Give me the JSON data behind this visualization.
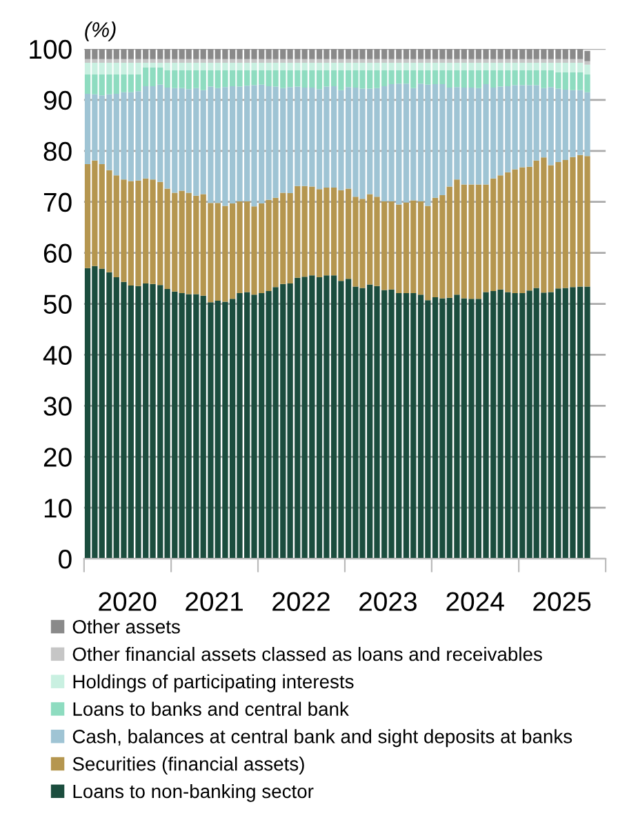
{
  "chart_data": {
    "type": "bar",
    "stacked": true,
    "ylabel": "(%)",
    "x": [
      "2020-01-16",
      "2020-02-15",
      "2020-03-16",
      "2020-04-16",
      "2020-05-16",
      "2020-06-16",
      "2020-07-16",
      "2020-08-16",
      "2020-09-16",
      "2020-10-16",
      "2020-11-16",
      "2020-12-16",
      "2021-01-16",
      "2021-02-15",
      "2021-03-16",
      "2021-04-16",
      "2021-05-16",
      "2021-06-16",
      "2021-07-16",
      "2021-08-16",
      "2021-09-16",
      "2021-10-16",
      "2021-11-16",
      "2021-12-16",
      "2022-01-16",
      "2022-02-15",
      "2022-03-16",
      "2022-04-16",
      "2022-05-16",
      "2022-06-16",
      "2022-07-16",
      "2022-08-16",
      "2022-09-16",
      "2022-10-16",
      "2022-11-16",
      "2022-12-16",
      "2023-01-16",
      "2023-02-15",
      "2023-03-16",
      "2023-04-16",
      "2023-05-16",
      "2023-06-16",
      "2023-07-16",
      "2023-08-16",
      "2023-09-16",
      "2023-10-16",
      "2023-11-16",
      "2023-12-16",
      "2024-01-16",
      "2024-02-15",
      "2024-03-16",
      "2024-04-16",
      "2024-05-16",
      "2024-06-16",
      "2024-07-16",
      "2024-08-16",
      "2024-09-16",
      "2024-10-16",
      "2024-11-16",
      "2024-12-16",
      "2025-01-16",
      "2025-02-15",
      "2025-03-16",
      "2025-04-16",
      "2025-05-16",
      "2025-06-16",
      "2025-07-16",
      "2025-08-16",
      "2025-09-16",
      "2025-10-16"
    ],
    "xlim": [
      "2020-01",
      "2026-01"
    ],
    "xticks": [
      {
        "value": "2020-01",
        "label": null
      },
      {
        "value": "2020-07",
        "label": "2020"
      },
      {
        "value": "2021-01",
        "label": null
      },
      {
        "value": "2021-07",
        "label": "2021"
      },
      {
        "value": "2022-01",
        "label": null
      },
      {
        "value": "2022-07",
        "label": "2022"
      },
      {
        "value": "2023-01",
        "label": null
      },
      {
        "value": "2023-07",
        "label": "2023"
      },
      {
        "value": "2024-01",
        "label": null
      },
      {
        "value": "2024-07",
        "label": "2024"
      },
      {
        "value": "2025-01",
        "label": null
      },
      {
        "value": "2025-07",
        "label": "2025"
      },
      {
        "value": "2026-01",
        "label": null
      }
    ],
    "ylim": [
      0,
      100
    ],
    "yticks": [
      0,
      10,
      20,
      30,
      40,
      50,
      60,
      70,
      80,
      90,
      100
    ],
    "grid": "y",
    "legend": "bottom",
    "series": [
      {
        "name": "Loans to non-banking sector",
        "color": "#1b4d3e",
        "values": [
          57.0,
          57.4,
          56.9,
          56.2,
          55.2,
          54.3,
          53.6,
          53.5,
          54.0,
          53.9,
          53.7,
          52.9,
          52.4,
          52.1,
          51.9,
          51.9,
          51.6,
          50.3,
          50.6,
          50.4,
          51.0,
          52.1,
          52.3,
          51.8,
          52.1,
          52.5,
          53.3,
          53.9,
          54.0,
          55.1,
          55.3,
          55.6,
          55.2,
          55.6,
          55.6,
          54.5,
          54.9,
          53.4,
          53.1,
          53.8,
          53.5,
          52.7,
          52.8,
          52.1,
          52.1,
          52.1,
          51.8,
          50.7,
          51.3,
          51.1,
          51.2,
          51.8,
          51.1,
          51.0,
          51.0,
          52.3,
          52.5,
          52.8,
          52.3,
          52.1,
          52.1,
          52.6,
          53.1,
          52.2,
          52.3,
          53.0,
          53.1,
          53.3,
          53.4,
          53.4
        ]
      },
      {
        "name": "Securities (financial assets)",
        "color": "#b5964f",
        "values": [
          20.4,
          20.7,
          20.5,
          20.0,
          20.0,
          20.1,
          20.5,
          20.7,
          20.6,
          20.5,
          20.2,
          19.7,
          19.4,
          20.1,
          19.9,
          19.3,
          19.9,
          19.5,
          19.2,
          18.8,
          18.7,
          18.0,
          17.8,
          17.3,
          17.6,
          17.9,
          17.5,
          17.9,
          17.7,
          18.0,
          17.8,
          17.4,
          17.3,
          17.2,
          17.2,
          17.8,
          17.7,
          17.6,
          17.5,
          17.7,
          17.5,
          17.4,
          17.3,
          17.4,
          17.8,
          18.2,
          18.3,
          18.5,
          19.5,
          20.2,
          21.8,
          22.6,
          22.3,
          22.4,
          22.4,
          21.1,
          22.1,
          22.4,
          23.5,
          24.3,
          24.7,
          24.3,
          25.0,
          26.5,
          24.9,
          24.8,
          25.1,
          25.5,
          25.8,
          25.6
        ]
      },
      {
        "name": "Cash, balances at central bank and sight deposits at banks",
        "color": "#9fc4d4",
        "values": [
          13.8,
          13.0,
          13.5,
          14.9,
          16.0,
          17.1,
          17.4,
          17.5,
          18.1,
          18.3,
          19.1,
          19.8,
          20.5,
          20.1,
          20.3,
          21.1,
          20.4,
          22.8,
          22.5,
          23.3,
          23.0,
          22.5,
          22.7,
          23.8,
          23.3,
          22.3,
          21.8,
          20.5,
          20.8,
          19.5,
          19.3,
          19.4,
          19.6,
          19.8,
          19.9,
          19.6,
          19.9,
          21.4,
          21.6,
          20.7,
          21.3,
          22.6,
          23.0,
          23.7,
          23.3,
          22.0,
          23.1,
          23.8,
          22.3,
          21.8,
          19.4,
          18.1,
          19.0,
          19.0,
          18.9,
          19.7,
          17.8,
          17.4,
          16.9,
          16.5,
          16.1,
          16.0,
          14.8,
          13.6,
          15.3,
          14.4,
          13.8,
          13.1,
          12.7,
          12.5
        ]
      },
      {
        "name": "Loans to banks and central bank",
        "color": "#8edcc0",
        "values": [
          3.8,
          3.9,
          4.1,
          3.9,
          3.8,
          3.5,
          3.5,
          3.3,
          3.7,
          3.7,
          3.4,
          3.4,
          3.5,
          3.5,
          3.7,
          3.5,
          3.9,
          3.2,
          3.5,
          3.3,
          3.1,
          3.2,
          3.0,
          2.9,
          2.8,
          3.1,
          3.2,
          3.5,
          3.3,
          3.2,
          3.4,
          3.4,
          3.7,
          3.2,
          3.1,
          3.9,
          3.3,
          3.4,
          3.6,
          3.6,
          3.5,
          3.1,
          2.7,
          2.6,
          2.6,
          3.5,
          2.6,
          2.8,
          2.7,
          2.7,
          3.4,
          3.3,
          3.4,
          3.4,
          3.5,
          2.7,
          3.4,
          3.2,
          3.1,
          2.9,
          2.9,
          2.9,
          2.9,
          3.5,
          3.3,
          3.2,
          3.4,
          3.5,
          3.5,
          3.5
        ]
      },
      {
        "name": "Holdings of participating interests",
        "color": "#c9f0e1",
        "values": [
          2.3,
          2.3,
          2.3,
          2.3,
          2.3,
          2.3,
          2.3,
          2.3,
          0.9,
          0.9,
          0.9,
          1.5,
          1.5,
          1.5,
          1.5,
          1.5,
          1.5,
          1.5,
          1.5,
          1.5,
          1.5,
          1.5,
          1.5,
          1.5,
          1.5,
          1.5,
          1.5,
          1.5,
          1.5,
          1.5,
          1.5,
          1.5,
          1.5,
          1.5,
          1.5,
          1.5,
          1.5,
          1.5,
          1.5,
          1.5,
          1.5,
          1.5,
          1.5,
          1.5,
          1.5,
          1.5,
          1.5,
          1.5,
          1.5,
          1.5,
          1.5,
          1.5,
          1.5,
          1.5,
          1.5,
          1.5,
          1.5,
          1.5,
          1.5,
          1.5,
          1.5,
          1.5,
          1.5,
          1.5,
          1.5,
          1.9,
          1.9,
          1.9,
          1.9,
          1.9
        ]
      },
      {
        "name": "Other financial assets classed as loans and receivables",
        "color": "#c6c6c6",
        "values": [
          0.7,
          0.7,
          0.7,
          0.7,
          0.7,
          0.7,
          0.7,
          0.7,
          0.7,
          0.7,
          0.7,
          0.7,
          0.7,
          0.7,
          0.7,
          0.7,
          0.7,
          0.7,
          0.7,
          0.7,
          0.7,
          0.7,
          0.7,
          0.7,
          0.7,
          0.7,
          0.7,
          0.7,
          0.7,
          0.7,
          0.7,
          0.7,
          0.7,
          0.7,
          0.7,
          0.7,
          0.7,
          0.7,
          0.7,
          0.7,
          0.7,
          0.7,
          0.7,
          0.7,
          0.7,
          0.7,
          0.7,
          0.7,
          0.7,
          0.7,
          0.7,
          0.7,
          0.7,
          0.7,
          0.7,
          0.7,
          0.7,
          0.7,
          0.7,
          0.7,
          0.7,
          0.7,
          0.7,
          0.7,
          0.7,
          0.7,
          0.7,
          0.7,
          0.7,
          0.7
        ]
      },
      {
        "name": "Other assets",
        "color": "#8a8a8a",
        "values": [
          2.0,
          2.0,
          2.0,
          2.0,
          2.0,
          2.0,
          2.0,
          2.0,
          2.0,
          2.0,
          2.0,
          2.0,
          2.0,
          2.0,
          2.0,
          2.0,
          2.0,
          2.0,
          2.0,
          2.0,
          2.0,
          2.0,
          2.0,
          2.0,
          2.0,
          2.0,
          2.0,
          2.0,
          2.0,
          2.0,
          2.0,
          2.0,
          2.0,
          2.0,
          2.0,
          2.0,
          2.0,
          2.0,
          2.0,
          2.0,
          2.0,
          2.0,
          2.0,
          2.0,
          2.0,
          2.0,
          2.0,
          2.0,
          2.0,
          2.0,
          2.0,
          2.0,
          2.0,
          2.0,
          2.0,
          2.0,
          2.0,
          2.0,
          2.0,
          2.0,
          2.0,
          2.0,
          2.0,
          2.0,
          2.0,
          2.0,
          2.0,
          2.0,
          2.0,
          2.0
        ]
      }
    ]
  }
}
